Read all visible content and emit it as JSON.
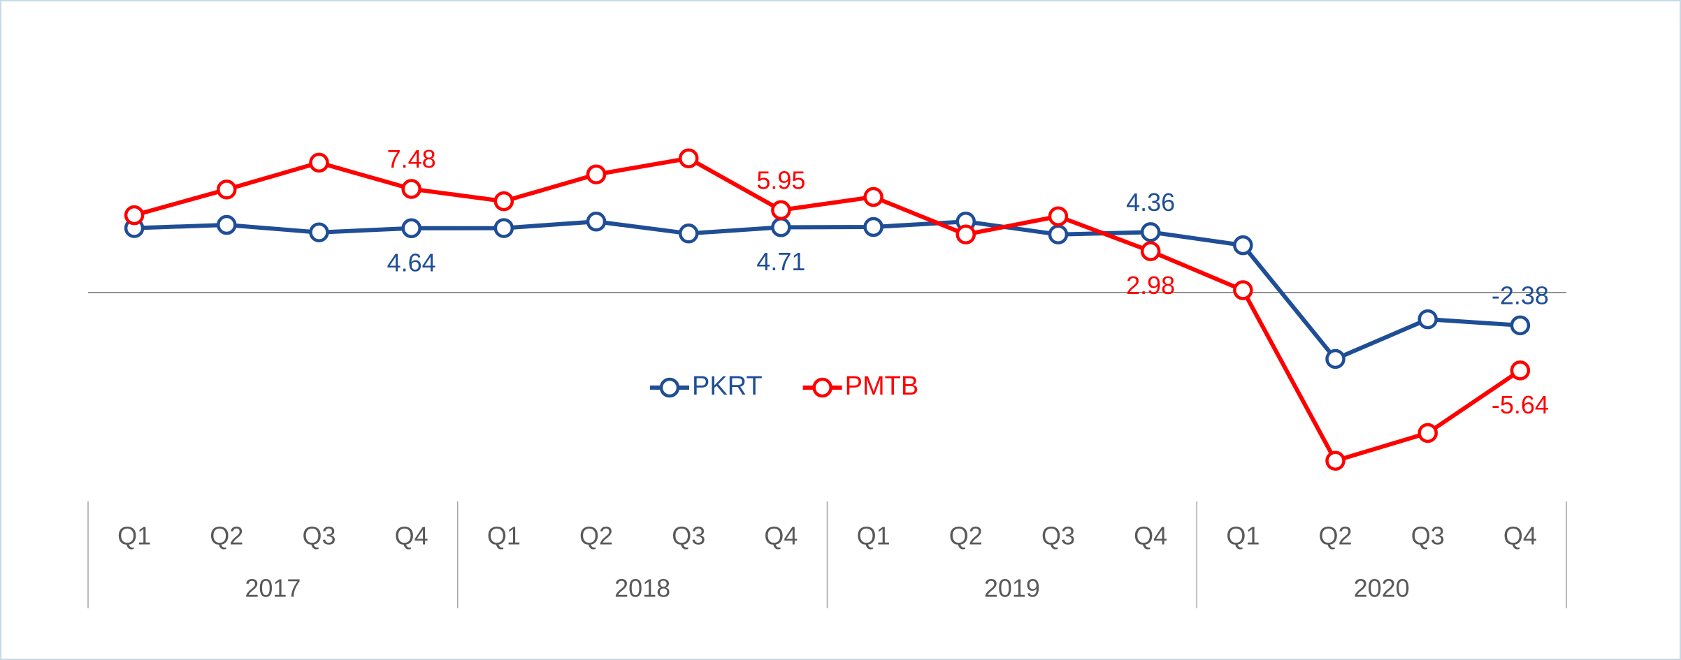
{
  "chart_data": {
    "type": "line",
    "categories": [
      "Q1",
      "Q2",
      "Q3",
      "Q4",
      "Q1",
      "Q2",
      "Q3",
      "Q4",
      "Q1",
      "Q2",
      "Q3",
      "Q4",
      "Q1",
      "Q2",
      "Q3",
      "Q4"
    ],
    "category_groups": [
      "2017",
      "2018",
      "2019",
      "2020"
    ],
    "series": [
      {
        "name": "PKRT",
        "color": "#1f4e96",
        "values": [
          4.65,
          4.88,
          4.34,
          4.64,
          4.65,
          5.12,
          4.26,
          4.71,
          4.73,
          5.12,
          4.19,
          4.36,
          3.41,
          -4.81,
          -1.94,
          -2.38
        ],
        "value_labels": [
          null,
          null,
          null,
          "4.64",
          null,
          null,
          null,
          "4.71",
          null,
          null,
          null,
          "4.36",
          null,
          null,
          null,
          "-2.38"
        ]
      },
      {
        "name": "PMTB",
        "color": "#ff0000",
        "values": [
          5.58,
          7.44,
          9.38,
          7.48,
          6.59,
          8.53,
          9.69,
          5.95,
          6.9,
          4.19,
          5.5,
          2.98,
          0.16,
          -12.17,
          -10.16,
          -5.64
        ],
        "value_labels": [
          null,
          null,
          null,
          "7.48",
          null,
          null,
          null,
          "5.95",
          null,
          null,
          null,
          "2.98",
          null,
          null,
          null,
          "-5.64"
        ]
      }
    ],
    "ylim": [
      -14,
      12
    ],
    "legend": "center"
  }
}
